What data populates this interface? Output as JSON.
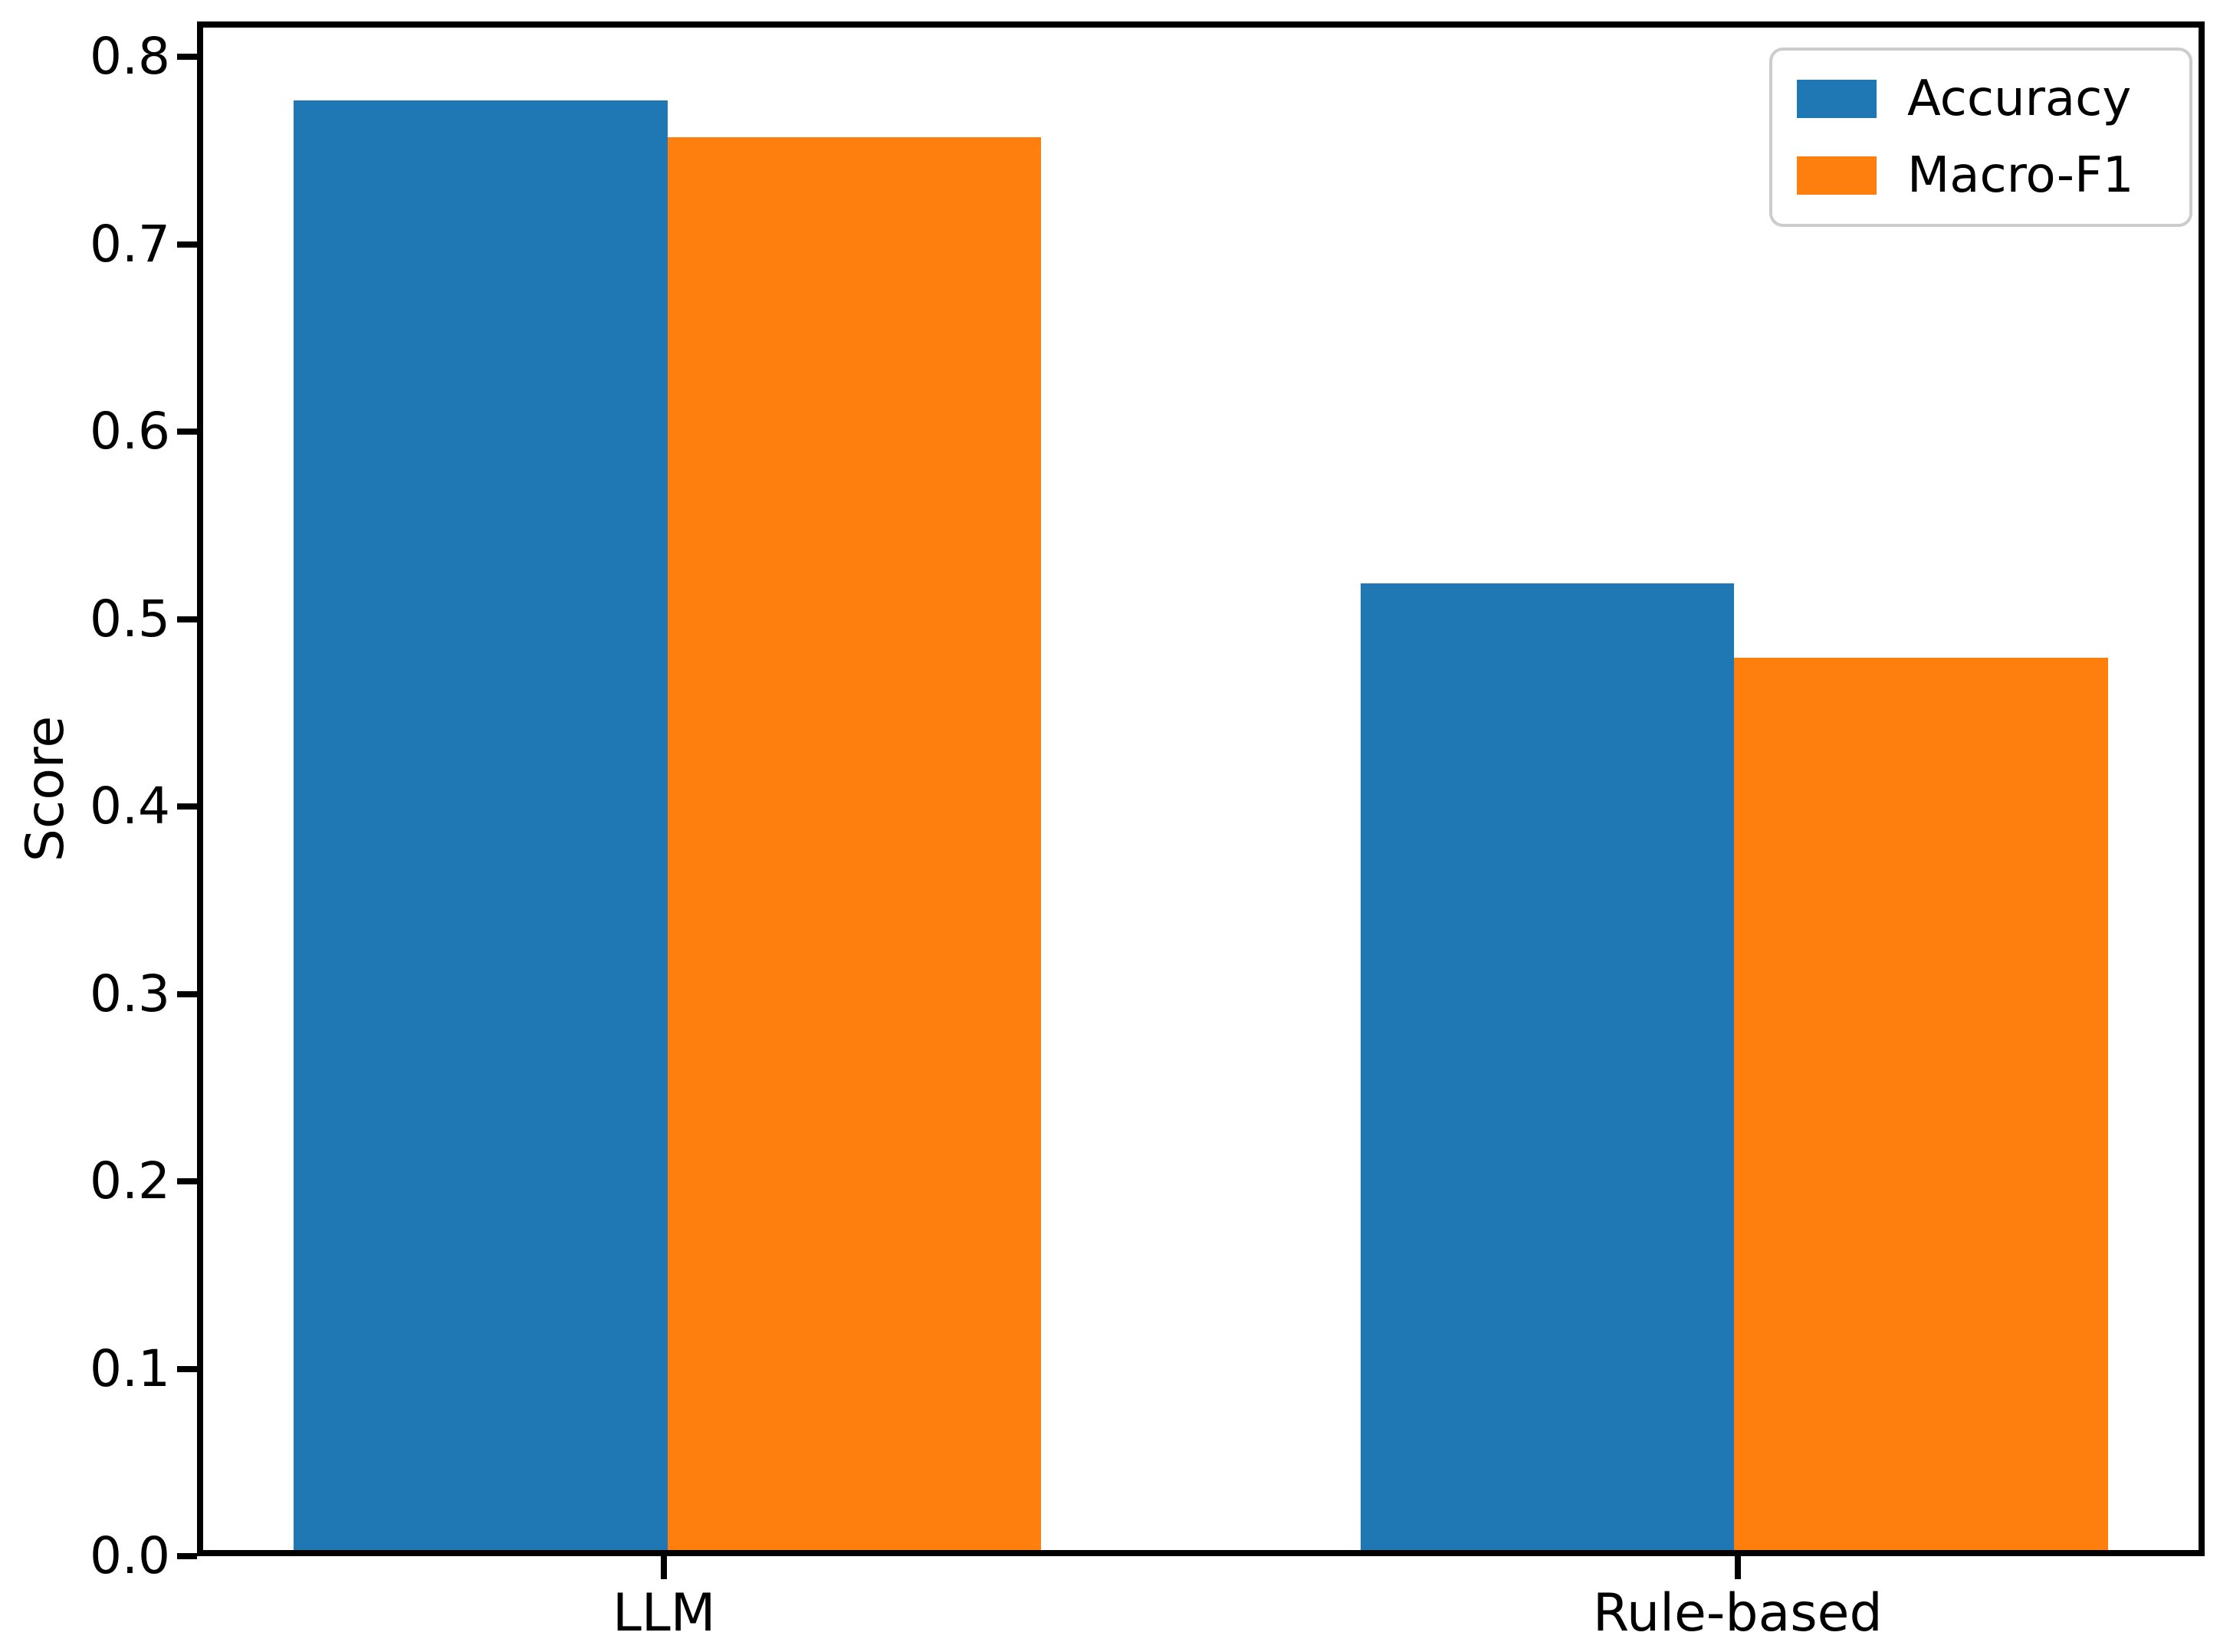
{
  "chart_data": {
    "type": "bar",
    "title": "",
    "categories": [
      "LLM",
      "Rule-based"
    ],
    "series": [
      {
        "name": "Accuracy",
        "color": "#1f77b4",
        "values": [
          0.78,
          0.52
        ]
      },
      {
        "name": "Macro-F1",
        "color": "#ff7f0e",
        "values": [
          0.76,
          0.48
        ]
      }
    ],
    "xlabel": "",
    "ylabel": "Score",
    "ylim": [
      0,
      0.819
    ],
    "yticks": [
      0.0,
      0.1,
      0.2,
      0.3,
      0.4,
      0.5,
      0.6,
      0.7,
      0.8
    ],
    "ytick_labels": [
      "0.0",
      "0.1",
      "0.2",
      "0.3",
      "0.4",
      "0.5",
      "0.6",
      "0.7",
      "0.8"
    ],
    "bar_width": 0.35,
    "grid": false,
    "legend": {
      "position": "upper right",
      "entries": [
        "Accuracy",
        "Macro-F1"
      ]
    },
    "axis_color": "#000000",
    "text_color": "#000000",
    "background_color": "#ffffff"
  }
}
